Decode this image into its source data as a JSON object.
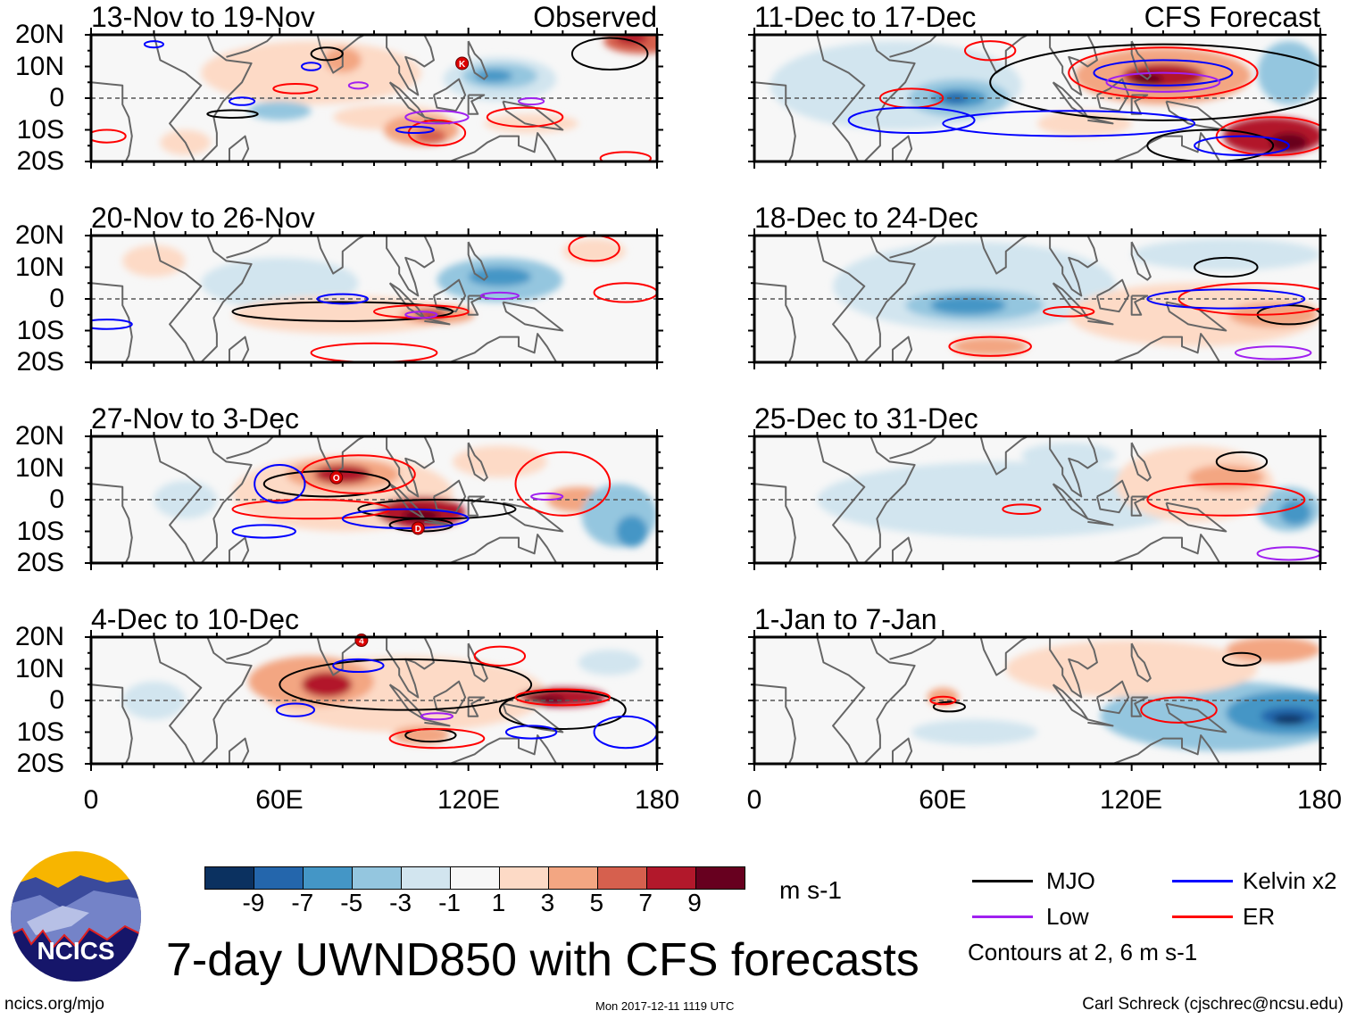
{
  "title": "7-day UWND850 with CFS forecasts",
  "panels": [
    {
      "title": "13-Nov to 19-Nov",
      "tag": "Observed",
      "storms": [
        "K"
      ]
    },
    {
      "title": "20-Nov to 26-Nov",
      "tag": "",
      "storms": []
    },
    {
      "title": "27-Nov to 3-Dec",
      "tag": "",
      "storms": [
        "O",
        "D"
      ]
    },
    {
      "title": "4-Dec to 10-Dec",
      "tag": "",
      "storms": [
        "4"
      ]
    },
    {
      "title": "11-Dec to 17-Dec",
      "tag": "CFS Forecast",
      "storms": []
    },
    {
      "title": "18-Dec to 24-Dec",
      "tag": "",
      "storms": []
    },
    {
      "title": "25-Dec to 31-Dec",
      "tag": "",
      "storms": []
    },
    {
      "title": "1-Jan to 7-Jan",
      "tag": "",
      "storms": []
    }
  ],
  "lat_labels": [
    "20N",
    "10N",
    "0",
    "10S",
    "20S"
  ],
  "lon_labels": [
    "0",
    "60E",
    "120E",
    "180"
  ],
  "colorbar": {
    "labels": [
      "-9",
      "-7",
      "-5",
      "-3",
      "-1",
      "1",
      "3",
      "5",
      "7",
      "9"
    ],
    "colors": [
      "#0b3160",
      "#2466ac",
      "#4496c6",
      "#94c6df",
      "#d2e5ef",
      "#f7f7f7",
      "#fddac6",
      "#f3a682",
      "#d6604e",
      "#b2182b",
      "#67001f"
    ],
    "units": "m s-1"
  },
  "legend": {
    "items": [
      {
        "label": "MJO",
        "color": "#000000"
      },
      {
        "label": "Kelvin x2",
        "color": "#0000ff"
      },
      {
        "label": "Low",
        "color": "#a020f0"
      },
      {
        "label": "ER",
        "color": "#ff0000"
      }
    ],
    "note": "Contours at 2, 6 m s-1"
  },
  "logo": {
    "text": "NCICS"
  },
  "footer": {
    "left": "ncics.org/mjo",
    "center": "Mon 2017-12-11 1119 UTC",
    "right": "Carl Schreck (cjschrec@ncsu.edu)"
  }
}
